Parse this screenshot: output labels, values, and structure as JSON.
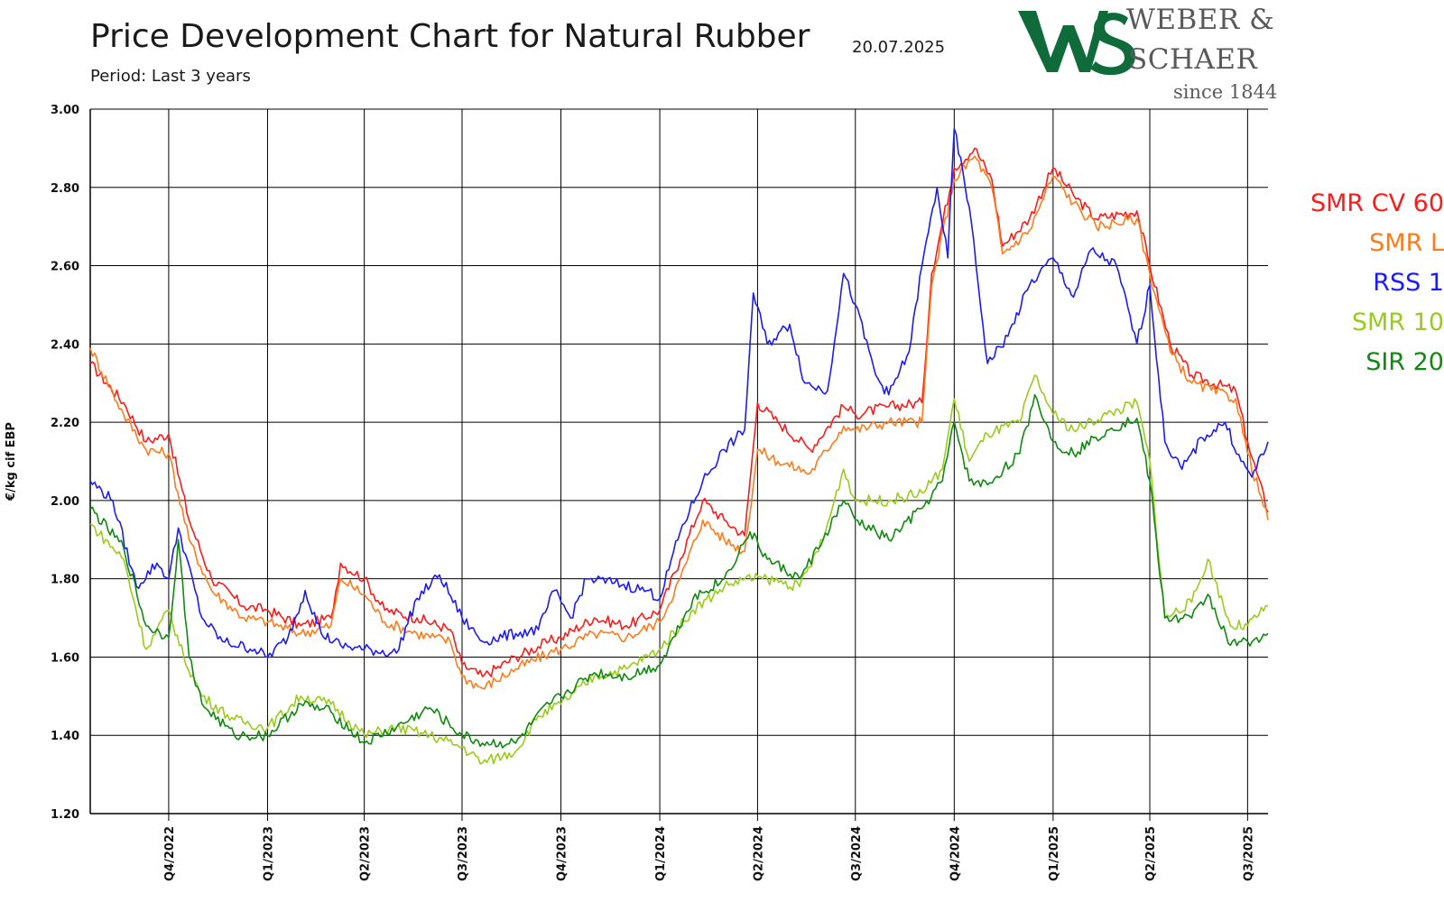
{
  "header": {
    "title": "Price Development Chart for Natural Rubber",
    "date": "20.07.2025",
    "subtitle": "Period: Last 3 years"
  },
  "logo": {
    "line1": "WEBER &",
    "line2": "SCHAER",
    "line3": "since 1844",
    "monogram": "WS",
    "color": "#0f6b3a"
  },
  "chart_data": {
    "type": "line",
    "title": "Price Development Chart for Natural Rubber",
    "ylabel": "€/kg cif EBP",
    "xlabel": "",
    "ylim": [
      1.2,
      3.0
    ],
    "yticks": [
      "1.20",
      "1.40",
      "1.60",
      "1.80",
      "2.00",
      "2.20",
      "2.40",
      "2.60",
      "2.80",
      "3.00"
    ],
    "x_start": "2022-07-20",
    "x_end": "2025-07-20",
    "xticks": [
      {
        "label": "Q4/2022",
        "date": "2022-10-01"
      },
      {
        "label": "Q1/2023",
        "date": "2023-01-01"
      },
      {
        "label": "Q2/2023",
        "date": "2023-04-01"
      },
      {
        "label": "Q3/2023",
        "date": "2023-07-01"
      },
      {
        "label": "Q4/2023",
        "date": "2023-10-01"
      },
      {
        "label": "Q1/2024",
        "date": "2024-01-01"
      },
      {
        "label": "Q2/2024",
        "date": "2024-04-01"
      },
      {
        "label": "Q3/2024",
        "date": "2024-07-01"
      },
      {
        "label": "Q4/2024",
        "date": "2024-10-01"
      },
      {
        "label": "Q1/2025",
        "date": "2025-01-01"
      },
      {
        "label": "Q2/2025",
        "date": "2025-04-01"
      },
      {
        "label": "Q3/2025",
        "date": "2025-07-01"
      }
    ],
    "grid": true,
    "legend_position": "right",
    "series": [
      {
        "name": "SMR CV 60",
        "color": "#ff1a1a",
        "points": [
          [
            "2022-07-20",
            2.35
          ],
          [
            "2022-08-20",
            2.25
          ],
          [
            "2022-09-10",
            2.15
          ],
          [
            "2022-10-01",
            2.17
          ],
          [
            "2022-10-20",
            1.95
          ],
          [
            "2022-11-10",
            1.8
          ],
          [
            "2022-12-10",
            1.73
          ],
          [
            "2023-01-01",
            1.72
          ],
          [
            "2023-02-01",
            1.68
          ],
          [
            "2023-03-01",
            1.7
          ],
          [
            "2023-03-10",
            1.84
          ],
          [
            "2023-04-01",
            1.8
          ],
          [
            "2023-04-20",
            1.72
          ],
          [
            "2023-05-20",
            1.7
          ],
          [
            "2023-06-20",
            1.67
          ],
          [
            "2023-07-01",
            1.58
          ],
          [
            "2023-07-20",
            1.55
          ],
          [
            "2023-08-20",
            1.6
          ],
          [
            "2023-09-20",
            1.64
          ],
          [
            "2023-10-01",
            1.65
          ],
          [
            "2023-11-01",
            1.7
          ],
          [
            "2023-12-01",
            1.68
          ],
          [
            "2024-01-01",
            1.72
          ],
          [
            "2024-01-20",
            1.85
          ],
          [
            "2024-02-10",
            2.0
          ],
          [
            "2024-03-01",
            1.95
          ],
          [
            "2024-03-20",
            1.91
          ],
          [
            "2024-04-01",
            2.25
          ],
          [
            "2024-04-20",
            2.2
          ],
          [
            "2024-05-20",
            2.13
          ],
          [
            "2024-06-20",
            2.24
          ],
          [
            "2024-07-01",
            2.22
          ],
          [
            "2024-08-01",
            2.24
          ],
          [
            "2024-09-01",
            2.25
          ],
          [
            "2024-09-10",
            2.58
          ],
          [
            "2024-10-01",
            2.85
          ],
          [
            "2024-10-20",
            2.9
          ],
          [
            "2024-11-05",
            2.82
          ],
          [
            "2024-11-15",
            2.65
          ],
          [
            "2024-12-10",
            2.72
          ],
          [
            "2025-01-01",
            2.85
          ],
          [
            "2025-01-20",
            2.78
          ],
          [
            "2025-02-10",
            2.72
          ],
          [
            "2025-03-20",
            2.74
          ],
          [
            "2025-04-01",
            2.6
          ],
          [
            "2025-04-20",
            2.4
          ],
          [
            "2025-05-10",
            2.32
          ],
          [
            "2025-06-20",
            2.28
          ],
          [
            "2025-07-01",
            2.15
          ],
          [
            "2025-07-20",
            1.97
          ]
        ]
      },
      {
        "name": "SMR L",
        "color": "#ff7a1a",
        "points": [
          [
            "2022-07-20",
            2.39
          ],
          [
            "2022-08-20",
            2.22
          ],
          [
            "2022-09-10",
            2.13
          ],
          [
            "2022-10-01",
            2.12
          ],
          [
            "2022-10-20",
            1.9
          ],
          [
            "2022-11-10",
            1.77
          ],
          [
            "2022-12-10",
            1.7
          ],
          [
            "2023-01-01",
            1.69
          ],
          [
            "2023-02-01",
            1.66
          ],
          [
            "2023-03-01",
            1.68
          ],
          [
            "2023-03-10",
            1.8
          ],
          [
            "2023-04-01",
            1.76
          ],
          [
            "2023-04-20",
            1.69
          ],
          [
            "2023-05-20",
            1.66
          ],
          [
            "2023-06-20",
            1.64
          ],
          [
            "2023-07-01",
            1.55
          ],
          [
            "2023-07-20",
            1.52
          ],
          [
            "2023-08-20",
            1.57
          ],
          [
            "2023-09-20",
            1.61
          ],
          [
            "2023-10-01",
            1.62
          ],
          [
            "2023-11-01",
            1.66
          ],
          [
            "2023-12-01",
            1.65
          ],
          [
            "2024-01-01",
            1.69
          ],
          [
            "2024-01-20",
            1.8
          ],
          [
            "2024-02-10",
            1.95
          ],
          [
            "2024-03-01",
            1.9
          ],
          [
            "2024-03-20",
            1.87
          ],
          [
            "2024-04-01",
            2.13
          ],
          [
            "2024-04-20",
            2.1
          ],
          [
            "2024-05-20",
            2.07
          ],
          [
            "2024-06-20",
            2.19
          ],
          [
            "2024-07-01",
            2.18
          ],
          [
            "2024-08-01",
            2.2
          ],
          [
            "2024-09-01",
            2.2
          ],
          [
            "2024-09-10",
            2.55
          ],
          [
            "2024-10-01",
            2.82
          ],
          [
            "2024-10-20",
            2.88
          ],
          [
            "2024-11-05",
            2.8
          ],
          [
            "2024-11-15",
            2.63
          ],
          [
            "2024-12-10",
            2.69
          ],
          [
            "2025-01-01",
            2.83
          ],
          [
            "2025-01-20",
            2.76
          ],
          [
            "2025-02-10",
            2.7
          ],
          [
            "2025-03-20",
            2.72
          ],
          [
            "2025-04-01",
            2.58
          ],
          [
            "2025-04-20",
            2.38
          ],
          [
            "2025-05-10",
            2.3
          ],
          [
            "2025-06-20",
            2.26
          ],
          [
            "2025-07-01",
            2.12
          ],
          [
            "2025-07-20",
            1.95
          ]
        ]
      },
      {
        "name": "RSS 1",
        "color": "#1a1aff",
        "points": [
          [
            "2022-07-20",
            2.05
          ],
          [
            "2022-08-10",
            2.0
          ],
          [
            "2022-09-01",
            1.78
          ],
          [
            "2022-09-20",
            1.84
          ],
          [
            "2022-10-01",
            1.8
          ],
          [
            "2022-10-10",
            1.93
          ],
          [
            "2022-11-01",
            1.7
          ],
          [
            "2022-11-20",
            1.64
          ],
          [
            "2022-12-20",
            1.62
          ],
          [
            "2023-01-01",
            1.6
          ],
          [
            "2023-01-20",
            1.65
          ],
          [
            "2023-02-05",
            1.77
          ],
          [
            "2023-02-20",
            1.66
          ],
          [
            "2023-03-10",
            1.63
          ],
          [
            "2023-04-01",
            1.62
          ],
          [
            "2023-05-01",
            1.61
          ],
          [
            "2023-05-20",
            1.75
          ],
          [
            "2023-06-10",
            1.81
          ],
          [
            "2023-07-01",
            1.7
          ],
          [
            "2023-07-20",
            1.64
          ],
          [
            "2023-08-20",
            1.66
          ],
          [
            "2023-09-10",
            1.67
          ],
          [
            "2023-09-25",
            1.77
          ],
          [
            "2023-10-10",
            1.7
          ],
          [
            "2023-10-25",
            1.8
          ],
          [
            "2023-11-20",
            1.79
          ],
          [
            "2023-12-20",
            1.77
          ],
          [
            "2024-01-01",
            1.75
          ],
          [
            "2024-01-20",
            1.92
          ],
          [
            "2024-02-10",
            2.05
          ],
          [
            "2024-03-01",
            2.13
          ],
          [
            "2024-03-20",
            2.18
          ],
          [
            "2024-03-28",
            2.53
          ],
          [
            "2024-04-10",
            2.4
          ],
          [
            "2024-05-01",
            2.45
          ],
          [
            "2024-05-15",
            2.3
          ],
          [
            "2024-06-05",
            2.28
          ],
          [
            "2024-06-20",
            2.58
          ],
          [
            "2024-07-01",
            2.5
          ],
          [
            "2024-07-20",
            2.32
          ],
          [
            "2024-08-01",
            2.27
          ],
          [
            "2024-08-20",
            2.38
          ],
          [
            "2024-09-01",
            2.6
          ],
          [
            "2024-09-15",
            2.8
          ],
          [
            "2024-09-25",
            2.62
          ],
          [
            "2024-10-01",
            2.95
          ],
          [
            "2024-10-15",
            2.75
          ],
          [
            "2024-11-01",
            2.35
          ],
          [
            "2024-11-20",
            2.42
          ],
          [
            "2024-12-10",
            2.55
          ],
          [
            "2025-01-01",
            2.62
          ],
          [
            "2025-01-20",
            2.52
          ],
          [
            "2025-02-05",
            2.64
          ],
          [
            "2025-03-01",
            2.6
          ],
          [
            "2025-03-20",
            2.4
          ],
          [
            "2025-04-01",
            2.55
          ],
          [
            "2025-04-15",
            2.15
          ],
          [
            "2025-05-01",
            2.08
          ],
          [
            "2025-05-20",
            2.16
          ],
          [
            "2025-06-10",
            2.2
          ],
          [
            "2025-06-25",
            2.1
          ],
          [
            "2025-07-05",
            2.06
          ],
          [
            "2025-07-20",
            2.15
          ]
        ]
      },
      {
        "name": "SMR 10",
        "color": "#99cc1a",
        "points": [
          [
            "2022-07-20",
            1.94
          ],
          [
            "2022-08-20",
            1.85
          ],
          [
            "2022-09-10",
            1.62
          ],
          [
            "2022-10-01",
            1.72
          ],
          [
            "2022-10-15",
            1.6
          ],
          [
            "2022-11-01",
            1.5
          ],
          [
            "2022-12-01",
            1.44
          ],
          [
            "2023-01-01",
            1.42
          ],
          [
            "2023-02-01",
            1.5
          ],
          [
            "2023-03-01",
            1.48
          ],
          [
            "2023-04-01",
            1.4
          ],
          [
            "2023-05-01",
            1.42
          ],
          [
            "2023-06-01",
            1.4
          ],
          [
            "2023-07-01",
            1.37
          ],
          [
            "2023-07-20",
            1.33
          ],
          [
            "2023-08-20",
            1.36
          ],
          [
            "2023-09-10",
            1.45
          ],
          [
            "2023-10-01",
            1.48
          ],
          [
            "2023-11-01",
            1.55
          ],
          [
            "2023-12-01",
            1.57
          ],
          [
            "2024-01-01",
            1.62
          ],
          [
            "2024-02-01",
            1.72
          ],
          [
            "2024-03-01",
            1.78
          ],
          [
            "2024-03-20",
            1.8
          ],
          [
            "2024-04-10",
            1.8
          ],
          [
            "2024-05-10",
            1.78
          ],
          [
            "2024-06-01",
            1.9
          ],
          [
            "2024-06-20",
            2.08
          ],
          [
            "2024-07-01",
            2.0
          ],
          [
            "2024-08-01",
            2.0
          ],
          [
            "2024-09-01",
            2.02
          ],
          [
            "2024-09-20",
            2.08
          ],
          [
            "2024-10-01",
            2.26
          ],
          [
            "2024-10-15",
            2.1
          ],
          [
            "2024-11-01",
            2.17
          ],
          [
            "2024-12-01",
            2.2
          ],
          [
            "2024-12-15",
            2.32
          ],
          [
            "2025-01-01",
            2.22
          ],
          [
            "2025-01-20",
            2.18
          ],
          [
            "2025-02-20",
            2.22
          ],
          [
            "2025-03-20",
            2.25
          ],
          [
            "2025-04-01",
            2.1
          ],
          [
            "2025-04-15",
            1.7
          ],
          [
            "2025-05-10",
            1.74
          ],
          [
            "2025-05-25",
            1.85
          ],
          [
            "2025-06-15",
            1.68
          ],
          [
            "2025-07-01",
            1.68
          ],
          [
            "2025-07-20",
            1.73
          ]
        ]
      },
      {
        "name": "SIR 20",
        "color": "#0f8a0f",
        "points": [
          [
            "2022-07-20",
            1.98
          ],
          [
            "2022-08-20",
            1.88
          ],
          [
            "2022-09-10",
            1.68
          ],
          [
            "2022-10-01",
            1.65
          ],
          [
            "2022-10-10",
            1.9
          ],
          [
            "2022-10-20",
            1.6
          ],
          [
            "2022-11-01",
            1.48
          ],
          [
            "2022-12-01",
            1.4
          ],
          [
            "2023-01-01",
            1.4
          ],
          [
            "2023-02-01",
            1.48
          ],
          [
            "2023-03-01",
            1.46
          ],
          [
            "2023-04-01",
            1.38
          ],
          [
            "2023-05-01",
            1.42
          ],
          [
            "2023-06-01",
            1.47
          ],
          [
            "2023-07-01",
            1.4
          ],
          [
            "2023-07-20",
            1.38
          ],
          [
            "2023-08-20",
            1.38
          ],
          [
            "2023-09-20",
            1.48
          ],
          [
            "2023-10-01",
            1.5
          ],
          [
            "2023-11-01",
            1.56
          ],
          [
            "2023-12-01",
            1.55
          ],
          [
            "2024-01-01",
            1.58
          ],
          [
            "2024-02-01",
            1.75
          ],
          [
            "2024-03-01",
            1.8
          ],
          [
            "2024-03-25",
            1.92
          ],
          [
            "2024-04-10",
            1.85
          ],
          [
            "2024-05-10",
            1.8
          ],
          [
            "2024-06-01",
            1.9
          ],
          [
            "2024-06-20",
            2.0
          ],
          [
            "2024-07-01",
            1.95
          ],
          [
            "2024-08-01",
            1.9
          ],
          [
            "2024-09-01",
            1.98
          ],
          [
            "2024-09-20",
            2.05
          ],
          [
            "2024-10-01",
            2.2
          ],
          [
            "2024-10-15",
            2.05
          ],
          [
            "2024-11-01",
            2.04
          ],
          [
            "2024-12-01",
            2.12
          ],
          [
            "2024-12-15",
            2.27
          ],
          [
            "2025-01-01",
            2.15
          ],
          [
            "2025-01-20",
            2.12
          ],
          [
            "2025-02-20",
            2.18
          ],
          [
            "2025-03-20",
            2.21
          ],
          [
            "2025-04-01",
            2.05
          ],
          [
            "2025-04-15",
            1.7
          ],
          [
            "2025-05-10",
            1.7
          ],
          [
            "2025-05-25",
            1.76
          ],
          [
            "2025-06-15",
            1.63
          ],
          [
            "2025-07-01",
            1.64
          ],
          [
            "2025-07-20",
            1.66
          ]
        ]
      }
    ]
  }
}
